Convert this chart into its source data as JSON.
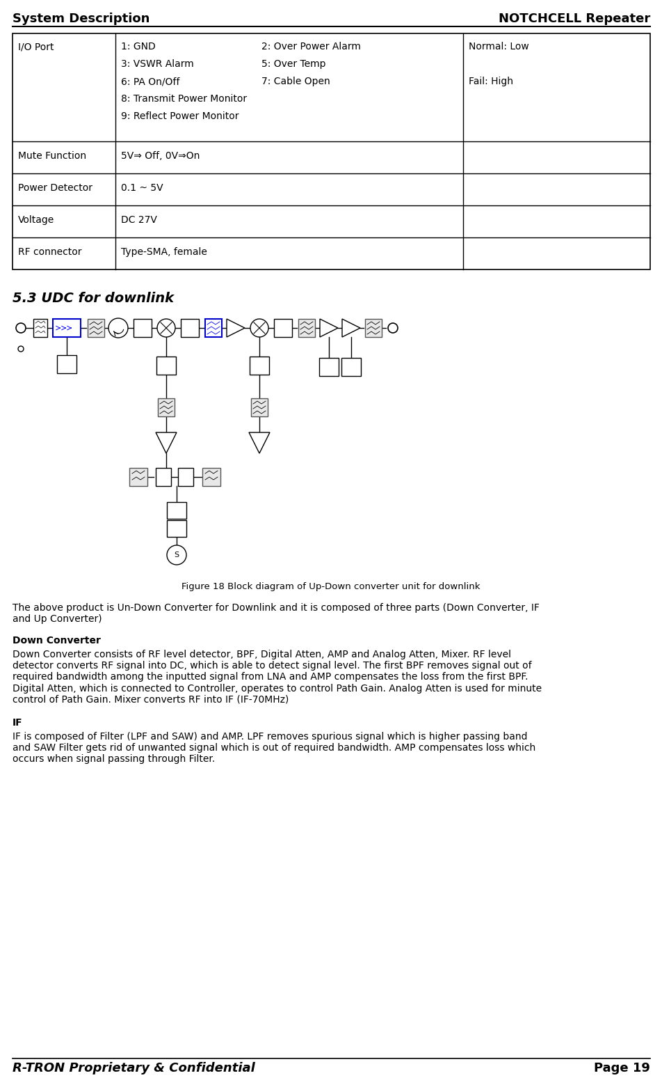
{
  "header_left": "System Description",
  "header_right": "NOTCHCELL Repeater",
  "footer_left": "R-TRON Proprietary & Confidential",
  "footer_right": "Page 19",
  "table_rows": [
    {
      "col1": "I/O Port",
      "col2_pairs": [
        [
          "1: GND",
          "2: Over Power Alarm"
        ],
        [
          "3: VSWR Alarm",
          "5: Over Temp"
        ],
        [
          "6: PA On/Off",
          "7: Cable Open"
        ],
        [
          "8: Transmit Power Monitor",
          ""
        ],
        [
          "9: Reflect Power Monitor",
          ""
        ]
      ],
      "col3": [
        "Normal: Low",
        "",
        "Fail: High"
      ]
    },
    {
      "col1": "Mute Function",
      "col2": "5V⇒ Off, 0V⇒On",
      "col3": ""
    },
    {
      "col1": "Power Detector",
      "col2": "0.1 ~ 5V",
      "col3": ""
    },
    {
      "col1": "Voltage",
      "col2": "DC 27V",
      "col3": ""
    },
    {
      "col1": "RF connector",
      "col2": "Type-SMA, female",
      "col3": ""
    }
  ],
  "section_title": "5.3 UDC for downlink",
  "figure_caption": "Figure 18 Block diagram of Up-Down converter unit for downlink",
  "para1": "The above product is Un-Down Converter for Downlink and it is composed of three parts (Down Converter, IF\nand Up Converter)",
  "head2": "Down Converter",
  "para2": "Down Converter consists of RF level detector, BPF, Digital Atten, AMP and Analog Atten, Mixer. RF level\ndetector converts RF signal into DC, which is able to detect signal level. The first BPF removes signal out of\nrequired bandwidth among the inputted signal from LNA and AMP compensates the loss from the first BPF.\nDigital Atten, which is connected to Controller, operates to control Path Gain. Analog Atten is used for minute\ncontrol of Path Gain. Mixer converts RF into IF (IF-70MHz)",
  "head3": "IF",
  "para3": "IF is composed of Filter (LPF and SAW) and AMP. LPF removes spurious signal which is higher passing band\nand SAW Filter gets rid of unwanted signal which is out of required bandwidth. AMP compensates loss which\noccurs when signal passing through Filter.",
  "bg_color": "#ffffff",
  "text_color": "#000000",
  "header_font_size": 13,
  "body_font_size": 10,
  "table_font_size": 10
}
